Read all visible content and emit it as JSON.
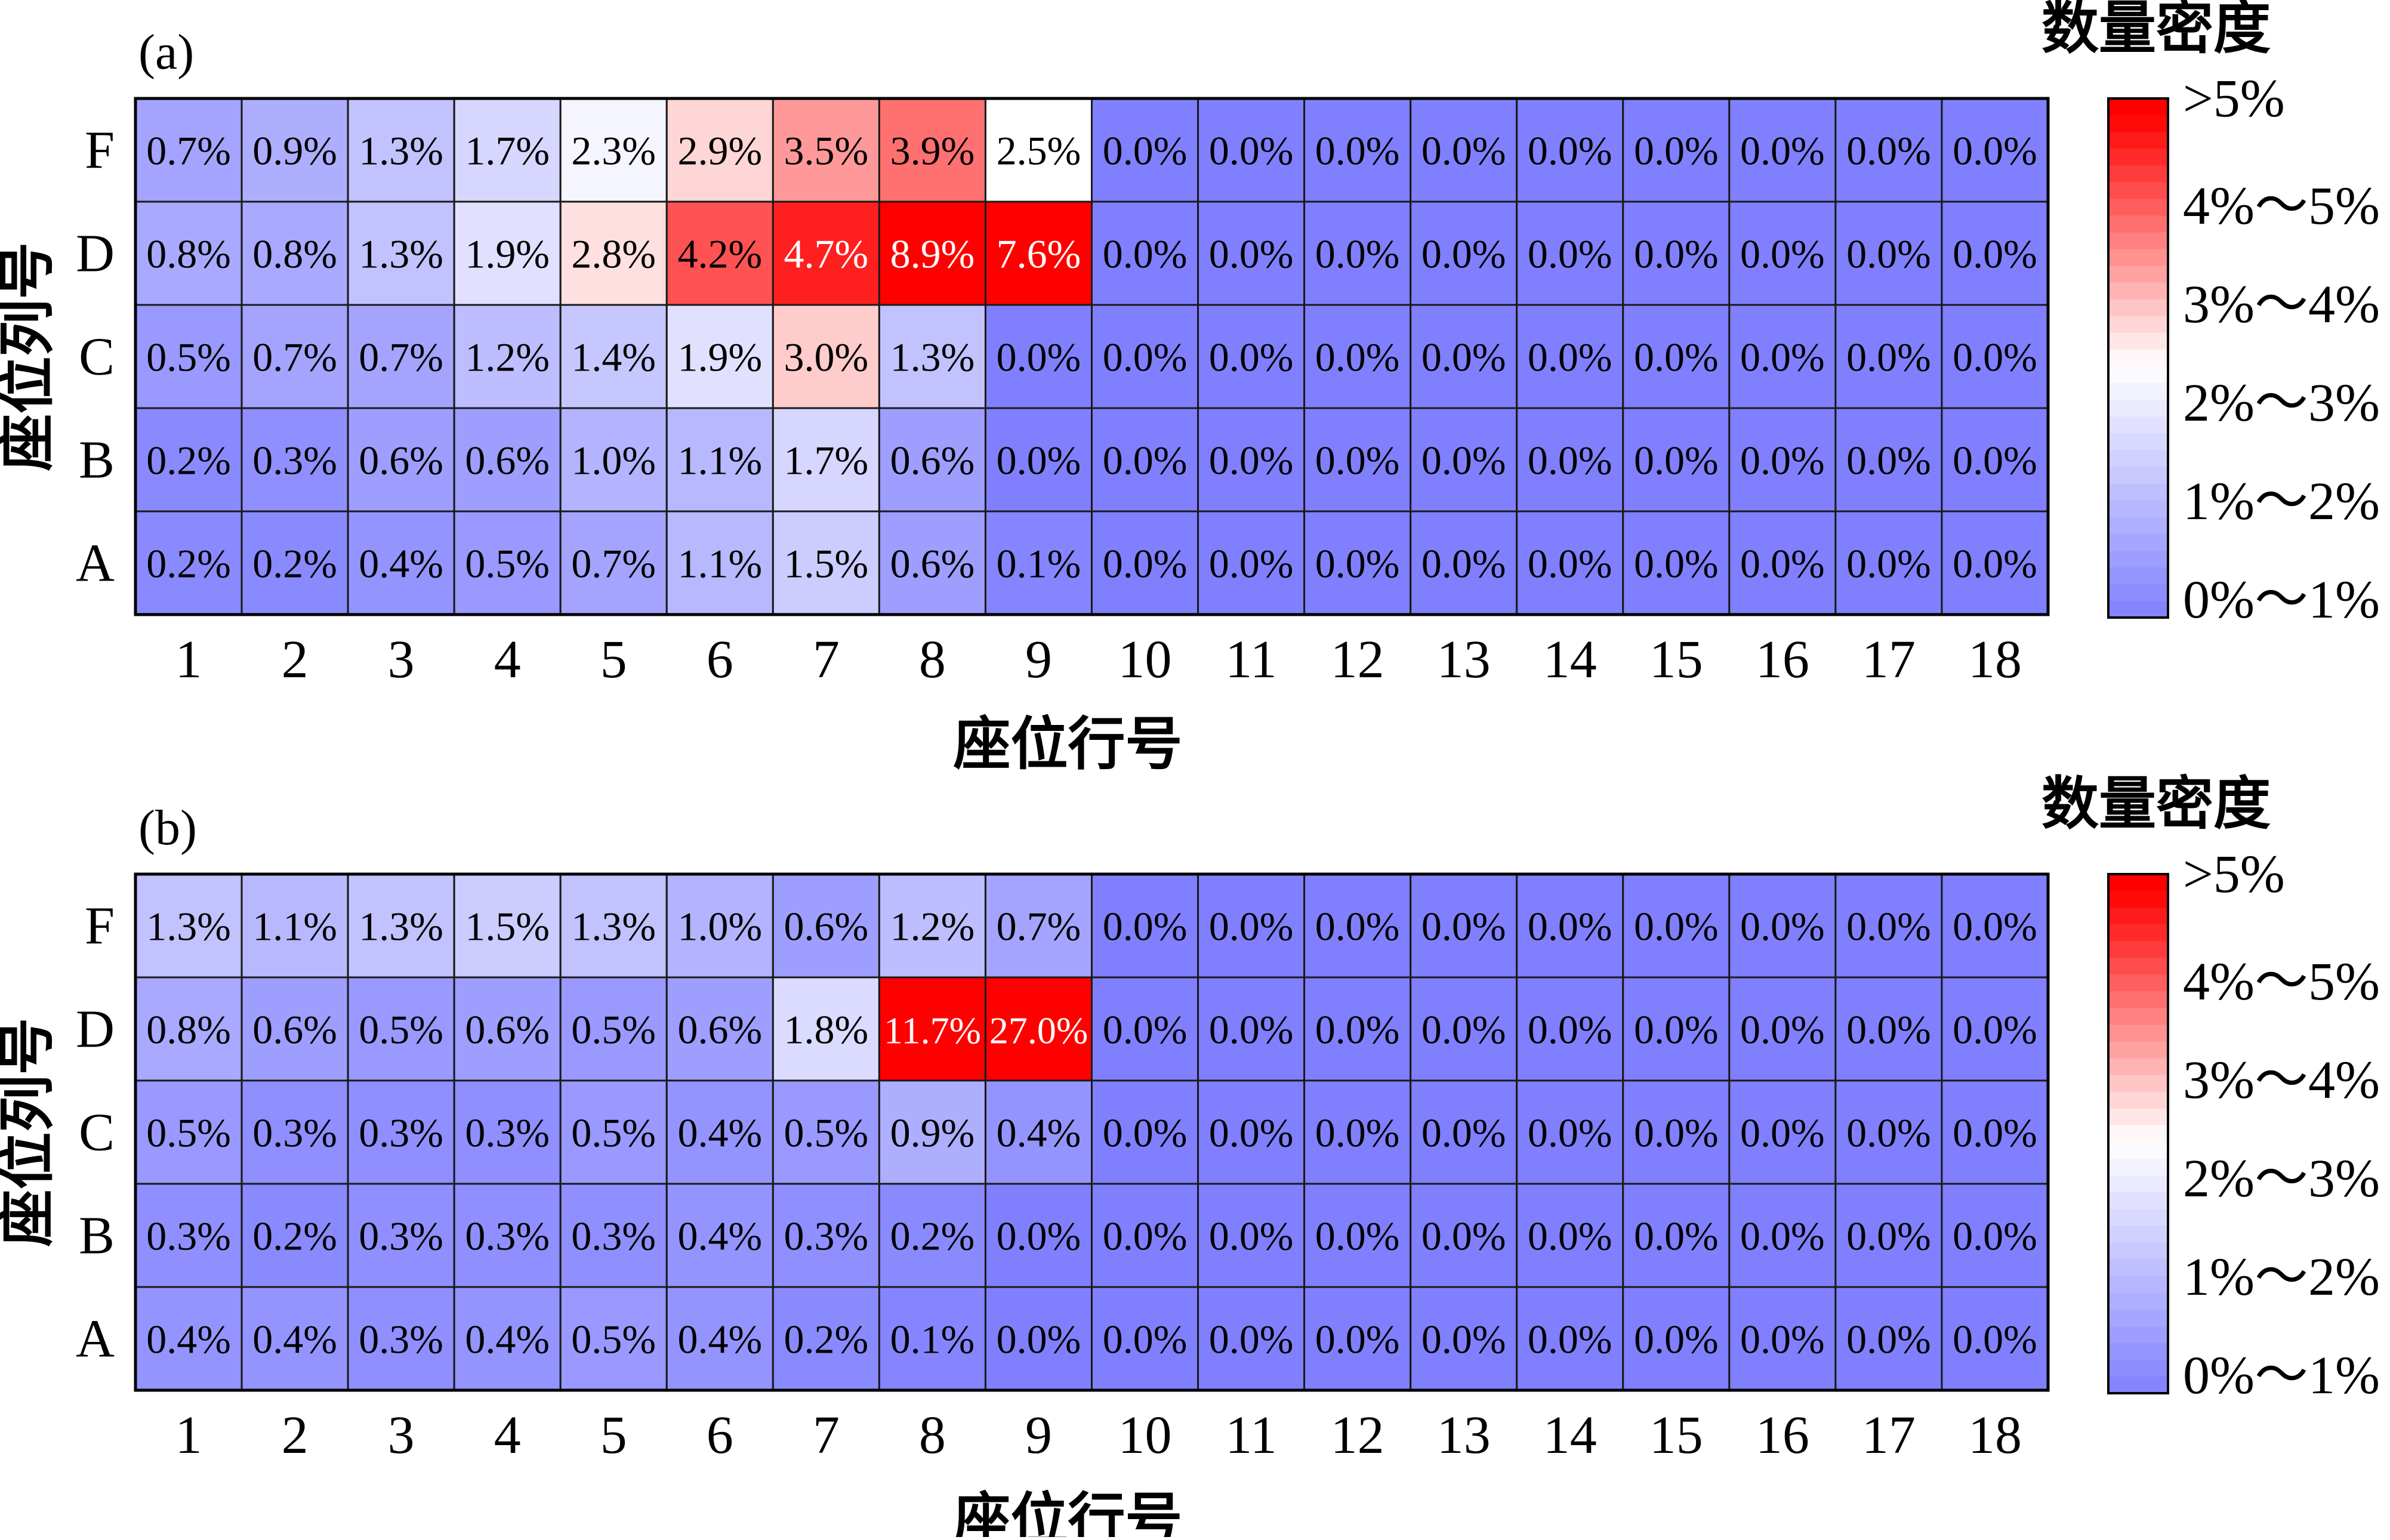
{
  "chart_data": [
    {
      "type": "heatmap",
      "panel_label": "(a)",
      "xlabel": "座位行号",
      "ylabel": "座位列号",
      "x_categories": [
        "1",
        "2",
        "3",
        "4",
        "5",
        "6",
        "7",
        "8",
        "9",
        "10",
        "11",
        "12",
        "13",
        "14",
        "15",
        "16",
        "17",
        "18"
      ],
      "y_categories": [
        "F",
        "D",
        "C",
        "B",
        "A"
      ],
      "values": [
        [
          0.7,
          0.9,
          1.3,
          1.7,
          2.3,
          2.9,
          3.5,
          3.9,
          2.5,
          0.0,
          0.0,
          0.0,
          0.0,
          0.0,
          0.0,
          0.0,
          0.0,
          0.0
        ],
        [
          0.8,
          0.8,
          1.3,
          1.9,
          2.8,
          4.2,
          4.7,
          8.9,
          7.6,
          0.0,
          0.0,
          0.0,
          0.0,
          0.0,
          0.0,
          0.0,
          0.0,
          0.0
        ],
        [
          0.5,
          0.7,
          0.7,
          1.2,
          1.4,
          1.9,
          3.0,
          1.3,
          0.0,
          0.0,
          0.0,
          0.0,
          0.0,
          0.0,
          0.0,
          0.0,
          0.0,
          0.0
        ],
        [
          0.2,
          0.3,
          0.6,
          0.6,
          1.0,
          1.1,
          1.7,
          0.6,
          0.0,
          0.0,
          0.0,
          0.0,
          0.0,
          0.0,
          0.0,
          0.0,
          0.0,
          0.0
        ],
        [
          0.2,
          0.2,
          0.4,
          0.5,
          0.7,
          1.1,
          1.5,
          0.6,
          0.1,
          0.0,
          0.0,
          0.0,
          0.0,
          0.0,
          0.0,
          0.0,
          0.0,
          0.0
        ]
      ],
      "value_labels": [
        [
          "0.7%",
          "0.9%",
          "1.3%",
          "1.7%",
          "2.3%",
          "2.9%",
          "3.5%",
          "3.9%",
          "2.5%",
          "0.0%",
          "0.0%",
          "0.0%",
          "0.0%",
          "0.0%",
          "0.0%",
          "0.0%",
          "0.0%",
          "0.0%"
        ],
        [
          "0.8%",
          "0.8%",
          "1.3%",
          "1.9%",
          "2.8%",
          "4.2%",
          "4.7%",
          "8.9%",
          "7.6%",
          "0.0%",
          "0.0%",
          "0.0%",
          "0.0%",
          "0.0%",
          "0.0%",
          "0.0%",
          "0.0%",
          "0.0%"
        ],
        [
          "0.5%",
          "0.7%",
          "0.7%",
          "1.2%",
          "1.4%",
          "1.9%",
          "3.0%",
          "1.3%",
          "0.0%",
          "0.0%",
          "0.0%",
          "0.0%",
          "0.0%",
          "0.0%",
          "0.0%",
          "0.0%",
          "0.0%",
          "0.0%"
        ],
        [
          "0.2%",
          "0.3%",
          "0.6%",
          "0.6%",
          "1.0%",
          "1.1%",
          "1.7%",
          "0.6%",
          "0.0%",
          "0.0%",
          "0.0%",
          "0.0%",
          "0.0%",
          "0.0%",
          "0.0%",
          "0.0%",
          "0.0%",
          "0.0%"
        ],
        [
          "0.2%",
          "0.2%",
          "0.4%",
          "0.5%",
          "0.7%",
          "1.1%",
          "1.5%",
          "0.6%",
          "0.1%",
          "0.0%",
          "0.0%",
          "0.0%",
          "0.0%",
          "0.0%",
          "0.0%",
          "0.0%",
          "0.0%",
          "0.0%"
        ]
      ],
      "colorbar": {
        "title": "数量密度",
        "labels": [
          ">5%",
          "4%～5%",
          "3%～4%",
          "2%～3%",
          "1%～2%",
          "0%～1%"
        ],
        "range": [
          0,
          5
        ],
        "low_color": "#8080ff",
        "mid_color": "#ffffff",
        "high_color": "#ff0000"
      }
    },
    {
      "type": "heatmap",
      "panel_label": "(b)",
      "xlabel": "座位行号",
      "ylabel": "座位列号",
      "x_categories": [
        "1",
        "2",
        "3",
        "4",
        "5",
        "6",
        "7",
        "8",
        "9",
        "10",
        "11",
        "12",
        "13",
        "14",
        "15",
        "16",
        "17",
        "18"
      ],
      "y_categories": [
        "F",
        "D",
        "C",
        "B",
        "A"
      ],
      "values": [
        [
          1.3,
          1.1,
          1.3,
          1.5,
          1.3,
          1.0,
          0.6,
          1.2,
          0.7,
          0.0,
          0.0,
          0.0,
          0.0,
          0.0,
          0.0,
          0.0,
          0.0,
          0.0
        ],
        [
          0.8,
          0.6,
          0.5,
          0.6,
          0.5,
          0.6,
          1.8,
          11.7,
          27.0,
          0.0,
          0.0,
          0.0,
          0.0,
          0.0,
          0.0,
          0.0,
          0.0,
          0.0
        ],
        [
          0.5,
          0.3,
          0.3,
          0.3,
          0.5,
          0.4,
          0.5,
          0.9,
          0.4,
          0.0,
          0.0,
          0.0,
          0.0,
          0.0,
          0.0,
          0.0,
          0.0,
          0.0
        ],
        [
          0.3,
          0.2,
          0.3,
          0.3,
          0.3,
          0.4,
          0.3,
          0.2,
          0.0,
          0.0,
          0.0,
          0.0,
          0.0,
          0.0,
          0.0,
          0.0,
          0.0,
          0.0
        ],
        [
          0.4,
          0.4,
          0.3,
          0.4,
          0.5,
          0.4,
          0.2,
          0.1,
          0.0,
          0.0,
          0.0,
          0.0,
          0.0,
          0.0,
          0.0,
          0.0,
          0.0,
          0.0
        ]
      ],
      "value_labels": [
        [
          "1.3%",
          "1.1%",
          "1.3%",
          "1.5%",
          "1.3%",
          "1.0%",
          "0.6%",
          "1.2%",
          "0.7%",
          "0.0%",
          "0.0%",
          "0.0%",
          "0.0%",
          "0.0%",
          "0.0%",
          "0.0%",
          "0.0%",
          "0.0%"
        ],
        [
          "0.8%",
          "0.6%",
          "0.5%",
          "0.6%",
          "0.5%",
          "0.6%",
          "1.8%",
          "11.7%",
          "27.0%",
          "0.0%",
          "0.0%",
          "0.0%",
          "0.0%",
          "0.0%",
          "0.0%",
          "0.0%",
          "0.0%",
          "0.0%"
        ],
        [
          "0.5%",
          "0.3%",
          "0.3%",
          "0.3%",
          "0.5%",
          "0.4%",
          "0.5%",
          "0.9%",
          "0.4%",
          "0.0%",
          "0.0%",
          "0.0%",
          "0.0%",
          "0.0%",
          "0.0%",
          "0.0%",
          "0.0%",
          "0.0%"
        ],
        [
          "0.3%",
          "0.2%",
          "0.3%",
          "0.3%",
          "0.3%",
          "0.4%",
          "0.3%",
          "0.2%",
          "0.0%",
          "0.0%",
          "0.0%",
          "0.0%",
          "0.0%",
          "0.0%",
          "0.0%",
          "0.0%",
          "0.0%",
          "0.0%"
        ],
        [
          "0.4%",
          "0.4%",
          "0.3%",
          "0.4%",
          "0.5%",
          "0.4%",
          "0.2%",
          "0.1%",
          "0.0%",
          "0.0%",
          "0.0%",
          "0.0%",
          "0.0%",
          "0.0%",
          "0.0%",
          "0.0%",
          "0.0%",
          "0.0%"
        ]
      ],
      "colorbar": {
        "title": "数量密度",
        "labels": [
          ">5%",
          "4%～5%",
          "3%～4%",
          "2%～3%",
          "1%～2%",
          "0%～1%"
        ],
        "range": [
          0,
          5
        ],
        "low_color": "#8080ff",
        "mid_color": "#ffffff",
        "high_color": "#ff0000"
      }
    }
  ]
}
